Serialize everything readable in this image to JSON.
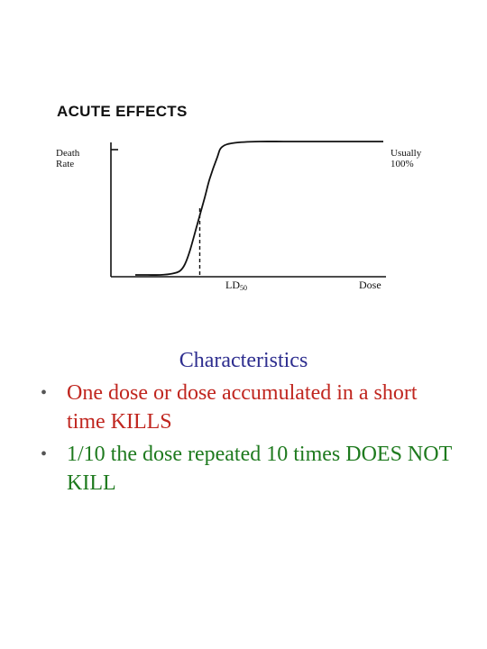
{
  "figure": {
    "title": "ACUTE EFFECTS",
    "ylabel_line1": "Death",
    "ylabel_line2": "Rate",
    "note_line1": "Usually",
    "note_line2": "100%",
    "ld50_main": "LD",
    "ld50_sub": "50",
    "xlabel": "Dose"
  },
  "chart_data": {
    "type": "line",
    "title": "ACUTE EFFECTS",
    "xlabel": "Dose",
    "ylabel": "Death Rate",
    "x_ticks": [],
    "y_ticks": [],
    "ylim": [
      0,
      100
    ],
    "grid": false,
    "series": [
      {
        "x": [
          0,
          5,
          10,
          15,
          18,
          20,
          22,
          25,
          28,
          30,
          33,
          35,
          40,
          50,
          60,
          70,
          80,
          90,
          100
        ],
        "values": [
          0,
          0,
          0,
          1,
          3,
          8,
          18,
          38,
          58,
          72,
          88,
          96,
          99,
          100,
          100,
          100,
          100,
          100,
          100
        ]
      }
    ],
    "annotations": [
      {
        "text": "LD50",
        "x": 26,
        "y": 50,
        "style": "dashed-drop-line"
      },
      {
        "text": "Usually 100%",
        "position": "right-of-plateau"
      }
    ]
  },
  "text": {
    "heading": "Characteristics",
    "bullets": [
      {
        "text": "One dose or dose accumulated in a short time KILLS",
        "color": "#c0261f"
      },
      {
        "text": "1/10 the dose repeated 10 times DOES NOT KILL",
        "color": "#1e7a1e"
      }
    ]
  }
}
